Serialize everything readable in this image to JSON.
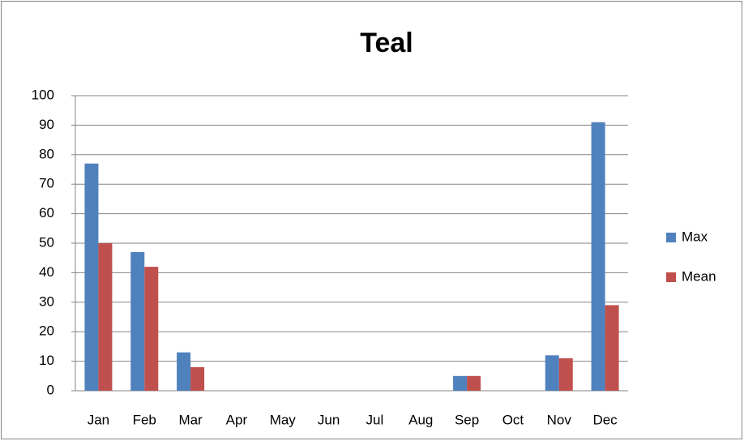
{
  "chart_data": {
    "type": "bar",
    "title": "Teal",
    "categories": [
      "Jan",
      "Feb",
      "Mar",
      "Apr",
      "May",
      "Jun",
      "Jul",
      "Aug",
      "Sep",
      "Oct",
      "Nov",
      "Dec"
    ],
    "series": [
      {
        "name": "Max",
        "color": "#4f81bd",
        "values": [
          77,
          47,
          13,
          0,
          0,
          0,
          0,
          0,
          5,
          0,
          12,
          91
        ]
      },
      {
        "name": "Mean",
        "color": "#c0504d",
        "values": [
          50,
          42,
          8,
          0,
          0,
          0,
          0,
          0,
          5,
          0,
          11,
          29
        ]
      }
    ],
    "ylim": [
      0,
      100
    ],
    "yticks": [
      0,
      10,
      20,
      30,
      40,
      50,
      60,
      70,
      80,
      90,
      100
    ],
    "grid": true,
    "legend": "right"
  }
}
